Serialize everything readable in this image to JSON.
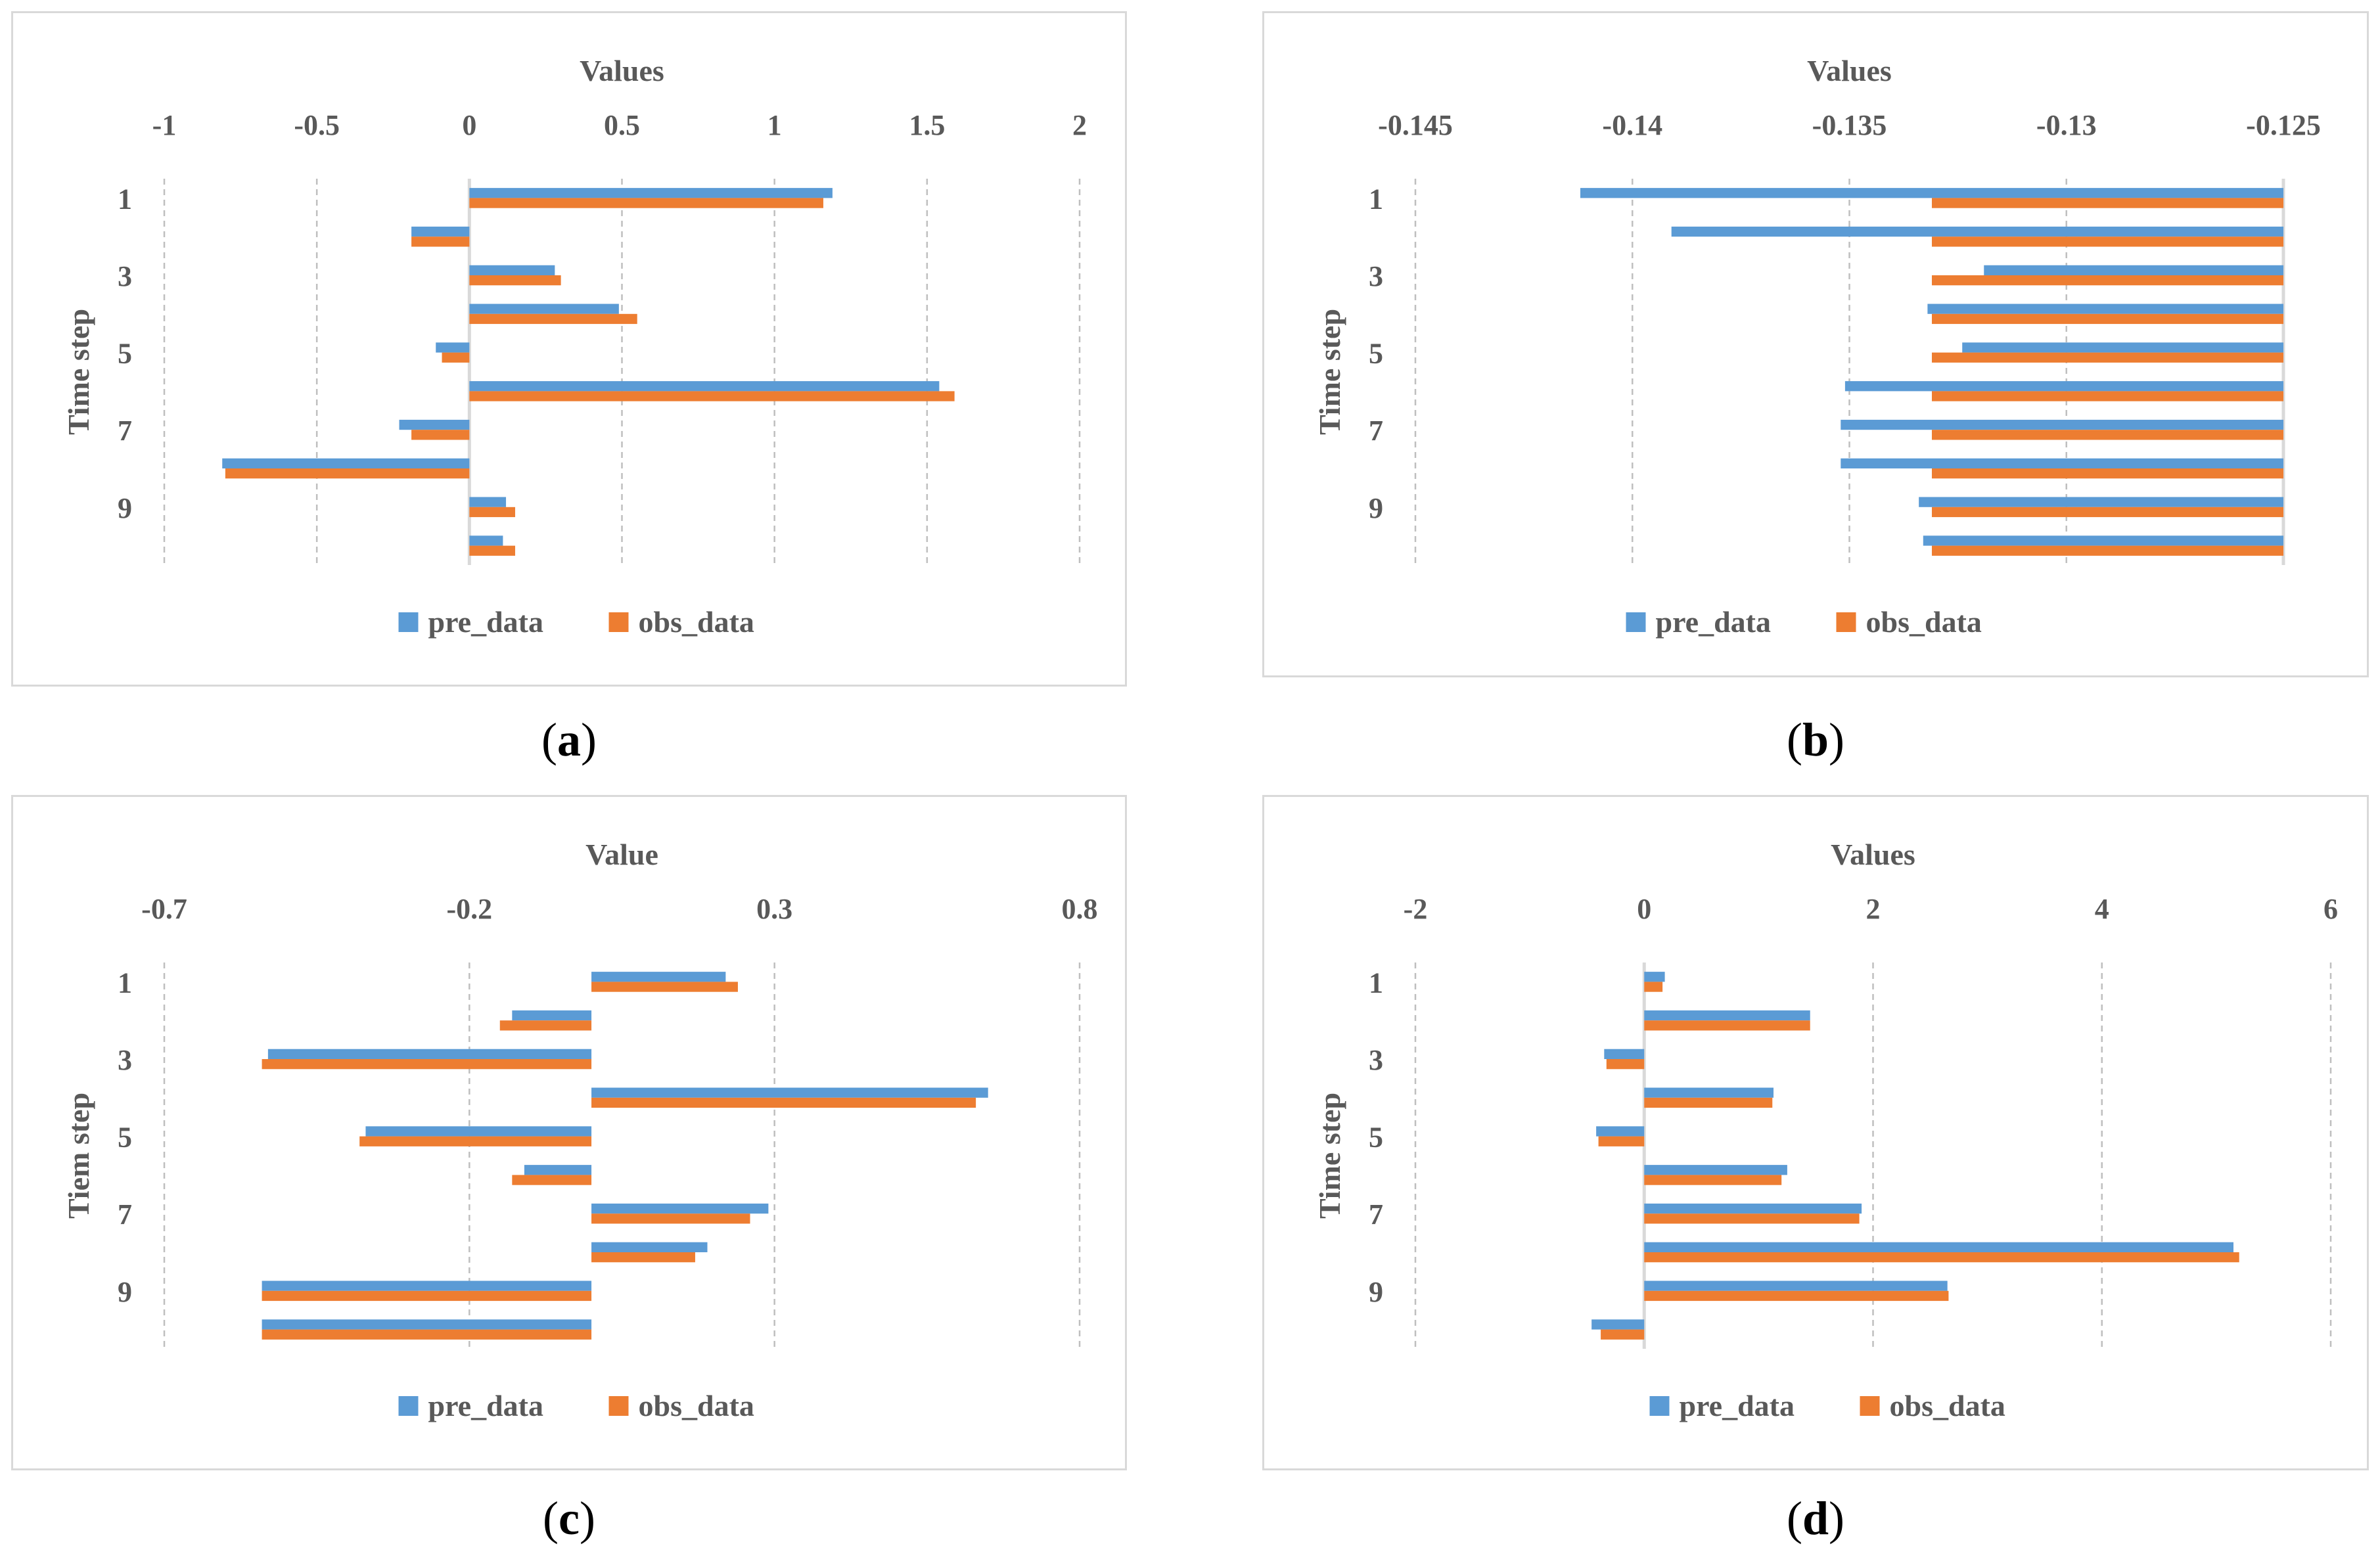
{
  "colors": {
    "pre": "#5b9bd5",
    "obs": "#ed7d31",
    "grid": "#bfbfbf",
    "axis": "#d9d9d9",
    "text": "#595959"
  },
  "legend": {
    "pre": "pre_data",
    "obs": "obs_data"
  },
  "chart_data": [
    {
      "id": "a",
      "type": "bar",
      "orientation": "horizontal",
      "caption_letter": "a",
      "title": "",
      "xlabel": "Values",
      "ylabel": "Time step",
      "xticks": [
        "-1",
        "-0.5",
        "0",
        "0.5",
        "1",
        "1.5",
        "2"
      ],
      "xlim": [
        -1,
        2
      ],
      "base": 0,
      "categories": [
        "1",
        "2",
        "3",
        "4",
        "5",
        "6",
        "7",
        "8",
        "9",
        "10"
      ],
      "category_labels_shown": [
        "1",
        "3",
        "5",
        "7",
        "9"
      ],
      "series": [
        {
          "name": "pre_data",
          "values": [
            1.19,
            -0.19,
            0.28,
            0.49,
            -0.11,
            1.54,
            -0.23,
            -0.81,
            0.12,
            0.11
          ]
        },
        {
          "name": "obs_data",
          "values": [
            1.16,
            -0.19,
            0.3,
            0.55,
            -0.09,
            1.59,
            -0.19,
            -0.8,
            0.15,
            0.15
          ]
        }
      ],
      "legend_position": "bottom"
    },
    {
      "id": "b",
      "type": "bar",
      "orientation": "horizontal",
      "caption_letter": "b",
      "title": "",
      "xlabel": "Values",
      "ylabel": "Time step",
      "xticks": [
        "-0.145",
        "-0.14",
        "-0.135",
        "-0.13",
        "-0.125"
      ],
      "xlim": [
        -0.145,
        -0.125
      ],
      "base": -0.125,
      "categories": [
        "1",
        "2",
        "3",
        "4",
        "5",
        "6",
        "7",
        "8",
        "9",
        "10"
      ],
      "category_labels_shown": [
        "1",
        "3",
        "5",
        "7",
        "9"
      ],
      "series": [
        {
          "name": "pre_data",
          "values": [
            -0.1412,
            -0.1391,
            -0.1319,
            -0.1332,
            -0.1324,
            -0.1351,
            -0.1352,
            -0.1352,
            -0.1334,
            -0.1333
          ]
        },
        {
          "name": "obs_data",
          "values": [
            -0.1331,
            -0.1331,
            -0.1331,
            -0.1331,
            -0.1331,
            -0.1331,
            -0.1331,
            -0.1331,
            -0.1331,
            -0.1331
          ]
        }
      ],
      "legend_position": "bottom"
    },
    {
      "id": "c",
      "type": "bar",
      "orientation": "horizontal",
      "caption_letter": "c",
      "title": "",
      "xlabel": "Value",
      "ylabel": "Tiem step",
      "xticks": [
        "-0.7",
        "-0.2",
        "0.3",
        "0.8"
      ],
      "xlim": [
        -0.7,
        0.8
      ],
      "base": 0,
      "categories": [
        "1",
        "2",
        "3",
        "4",
        "5",
        "6",
        "7",
        "8",
        "9",
        "10"
      ],
      "category_labels_shown": [
        "1",
        "3",
        "5",
        "7",
        "9"
      ],
      "series": [
        {
          "name": "pre_data",
          "values": [
            0.22,
            -0.13,
            -0.53,
            0.65,
            -0.37,
            -0.11,
            0.29,
            0.19,
            -0.54,
            -0.54
          ]
        },
        {
          "name": "obs_data",
          "values": [
            0.24,
            -0.15,
            -0.54,
            0.63,
            -0.38,
            -0.13,
            0.26,
            0.17,
            -0.54,
            -0.54
          ]
        }
      ],
      "legend_position": "bottom"
    },
    {
      "id": "d",
      "type": "bar",
      "orientation": "horizontal",
      "caption_letter": "d",
      "title": "",
      "xlabel": "Values",
      "ylabel": "Time step",
      "xticks": [
        "-2",
        "0",
        "2",
        "4",
        "6"
      ],
      "xlim": [
        -2,
        6
      ],
      "base": 0,
      "categories": [
        "1",
        "2",
        "3",
        "4",
        "5",
        "6",
        "7",
        "8",
        "9",
        "10"
      ],
      "category_labels_shown": [
        "1",
        "3",
        "5",
        "7",
        "9"
      ],
      "series": [
        {
          "name": "pre_data",
          "values": [
            0.18,
            1.45,
            -0.35,
            1.13,
            -0.42,
            1.25,
            1.9,
            5.15,
            2.65,
            -0.46
          ]
        },
        {
          "name": "obs_data",
          "values": [
            0.16,
            1.45,
            -0.33,
            1.12,
            -0.4,
            1.2,
            1.88,
            5.2,
            2.66,
            -0.38
          ]
        }
      ],
      "legend_position": "bottom"
    }
  ]
}
